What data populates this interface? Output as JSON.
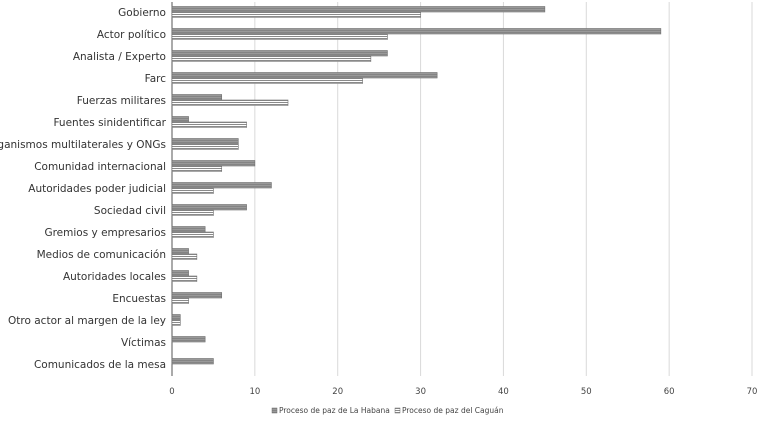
{
  "chart_data": {
    "type": "bar",
    "orientation": "horizontal",
    "categories": [
      "Gobierno",
      "Actor político",
      "Analista / Experto",
      "Farc",
      "Fuerzas militares",
      "Fuentes sinidentificar",
      "Organismos multilaterales y ONGs",
      "Comunidad internacional",
      "Autoridades poder judicial",
      "Sociedad civil",
      "Gremios y empresarios",
      "Medios de comunicación",
      "Autoridades locales",
      "Encuestas",
      "Otro actor al margen de la ley",
      "Víctimas",
      "Comunicados de la mesa"
    ],
    "series": [
      {
        "name": "Proceso de paz de La Habana",
        "color": "#999999",
        "values": [
          45,
          59,
          26,
          32,
          6,
          2,
          8,
          10,
          12,
          9,
          4,
          2,
          2,
          6,
          1,
          4,
          5
        ]
      },
      {
        "name": "Proceso de paz del Caguán",
        "color": "#bdbdbd",
        "values": [
          30,
          26,
          24,
          23,
          14,
          9,
          8,
          6,
          5,
          5,
          5,
          3,
          3,
          2,
          1,
          0,
          0
        ]
      }
    ],
    "xlim": [
      0,
      70
    ],
    "xticks": [
      0,
      10,
      20,
      30,
      40,
      50,
      60,
      70
    ],
    "grid": true,
    "legend": "bottom",
    "title": "",
    "xlabel": "",
    "ylabel": ""
  }
}
